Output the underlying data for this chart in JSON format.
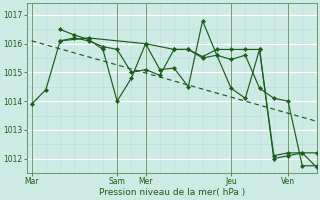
{
  "background_color": "#ceeae4",
  "grid_color": "#b0d8d0",
  "line_color": "#1a5e1a",
  "marker_color": "#1a5e1a",
  "ylabel_ticks": [
    1012,
    1013,
    1014,
    1015,
    1016,
    1017
  ],
  "xlabel": "Pression niveau de la mer( hPa )",
  "xtick_labels": [
    "Mar",
    "Sam",
    "Mer",
    "Jeu",
    "Ven"
  ],
  "xtick_positions": [
    0,
    36,
    48,
    84,
    108
  ],
  "vlines_x": [
    0,
    36,
    48,
    84,
    108
  ],
  "xlim": [
    -2,
    120
  ],
  "ylim": [
    1011.5,
    1017.4
  ],
  "lines": [
    {
      "x": [
        0,
        6,
        12,
        18,
        24,
        30,
        36,
        42,
        48,
        54,
        60,
        66,
        72,
        78,
        84,
        90,
        96,
        102,
        108,
        114,
        120
      ],
      "y": [
        1013.9,
        1014.4,
        1016.1,
        1016.2,
        1016.1,
        1015.9,
        1015.8,
        1015.0,
        1015.1,
        1014.9,
        1015.8,
        1015.8,
        1015.5,
        1015.6,
        1014.45,
        1014.1,
        1015.8,
        1012.0,
        1012.1,
        1012.2,
        1011.7
      ],
      "style": "line_marker"
    },
    {
      "x": [
        12,
        18,
        24,
        30,
        36,
        42,
        48,
        54,
        60,
        66,
        72,
        78,
        84,
        90,
        96,
        102,
        108,
        114,
        120
      ],
      "y": [
        1016.5,
        1016.3,
        1016.15,
        1015.8,
        1014.0,
        1014.8,
        1016.0,
        1015.1,
        1015.15,
        1014.5,
        1016.8,
        1015.6,
        1015.45,
        1015.6,
        1014.45,
        1014.1,
        1014.0,
        1011.75,
        1011.75
      ],
      "style": "line_marker"
    },
    {
      "x": [
        12,
        24,
        48,
        60,
        66,
        72,
        78,
        84,
        90,
        96,
        102,
        108,
        114,
        120
      ],
      "y": [
        1016.1,
        1016.2,
        1016.0,
        1015.8,
        1015.8,
        1015.55,
        1015.8,
        1015.8,
        1015.8,
        1015.8,
        1012.1,
        1012.2,
        1012.2,
        1012.2
      ],
      "style": "line_marker"
    },
    {
      "x": [
        0,
        120
      ],
      "y": [
        1016.1,
        1013.3
      ],
      "style": "dashed"
    }
  ]
}
